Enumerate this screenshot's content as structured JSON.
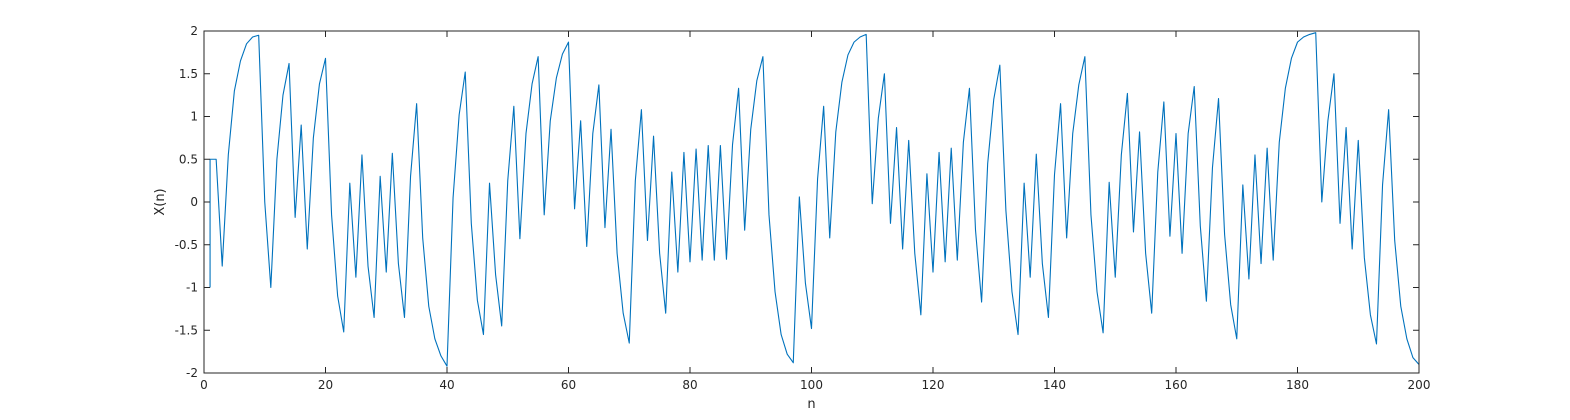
{
  "chart_data": {
    "type": "line",
    "title": "",
    "xlabel": "n",
    "ylabel": "X(n)",
    "xlim": [
      0,
      200
    ],
    "ylim": [
      -2,
      2
    ],
    "xticks": [
      0,
      20,
      40,
      60,
      80,
      100,
      120,
      140,
      160,
      180,
      200
    ],
    "yticks": [
      -2,
      -1.5,
      -1,
      -0.5,
      0,
      0.5,
      1,
      1.5,
      2
    ],
    "grid": false,
    "box": true,
    "series_color": "#0072BD",
    "axis_color": "#262626",
    "series": [
      {
        "x": [
          1,
          1,
          2,
          3,
          4,
          5,
          6,
          7,
          8,
          9,
          10,
          11,
          12,
          13,
          14,
          15,
          16,
          17,
          18,
          19,
          20,
          21,
          22,
          23,
          24,
          25,
          26,
          27,
          28,
          29,
          30,
          31,
          32,
          33,
          34,
          35,
          36,
          37,
          38,
          39,
          40,
          41,
          42,
          43,
          44,
          45,
          46,
          47,
          48,
          49,
          50,
          51,
          52,
          53,
          54,
          55,
          56,
          57,
          58,
          59,
          60,
          61,
          62,
          63,
          64,
          65,
          66,
          67,
          68,
          69,
          70,
          71,
          72,
          73,
          74,
          75,
          76,
          77,
          78,
          79,
          80,
          81,
          82,
          83,
          84,
          85,
          86,
          87,
          88,
          89,
          90,
          91,
          92,
          93,
          94,
          95,
          96,
          97,
          98,
          99,
          100,
          101,
          102,
          103,
          104,
          105,
          106,
          107,
          108,
          109,
          110,
          111,
          112,
          113,
          114,
          115,
          116,
          117,
          118,
          119,
          120,
          121,
          122,
          123,
          124,
          125,
          126,
          127,
          128,
          129,
          130,
          131,
          132,
          133,
          134,
          135,
          136,
          137,
          138,
          139,
          140,
          141,
          142,
          143,
          144,
          145,
          146,
          147,
          148,
          149,
          150,
          151,
          152,
          153,
          154,
          155,
          156,
          157,
          158,
          159,
          160,
          161,
          162,
          163,
          164,
          165,
          166,
          167,
          168,
          169,
          170,
          171,
          172,
          173,
          174,
          175,
          176,
          177,
          178,
          179,
          180,
          181,
          182,
          183,
          184,
          185,
          186,
          187,
          188,
          189,
          190,
          191,
          192,
          193,
          194,
          195,
          196,
          197,
          198,
          199,
          200
        ],
        "y": [
          -1,
          0.5,
          0.5,
          -0.75,
          0.55,
          1.3,
          1.65,
          1.85,
          1.93,
          1.95,
          0,
          -1,
          0.5,
          1.25,
          1.62,
          -0.18,
          0.9,
          -0.55,
          0.75,
          1.38,
          1.68,
          -0.15,
          -1.1,
          -1.52,
          0.22,
          -0.88,
          0.55,
          -0.75,
          -1.35,
          0.3,
          -0.82,
          0.57,
          -0.72,
          -1.35,
          0.3,
          1.15,
          -0.42,
          -1.22,
          -1.6,
          -1.8,
          -1.92,
          0.05,
          1.02,
          1.52,
          -0.25,
          -1.15,
          -1.55,
          0.22,
          -0.85,
          -1.45,
          0.25,
          1.12,
          -0.43,
          0.8,
          1.38,
          1.7,
          -0.15,
          0.95,
          1.45,
          1.73,
          1.87,
          -0.08,
          0.95,
          -0.52,
          0.8,
          1.37,
          -0.3,
          0.85,
          -0.6,
          -1.3,
          -1.65,
          0.25,
          1.08,
          -0.45,
          0.77,
          -0.6,
          -1.3,
          0.35,
          -0.82,
          0.58,
          -0.7,
          0.62,
          -0.68,
          0.66,
          -0.68,
          0.66,
          -0.67,
          0.67,
          1.33,
          -0.33,
          0.85,
          1.42,
          1.7,
          -0.15,
          -1.05,
          -1.55,
          -1.78,
          -1.88,
          0.06,
          -0.95,
          -1.48,
          0.27,
          1.12,
          -0.42,
          0.82,
          1.4,
          1.72,
          1.87,
          1.93,
          1.96,
          -0.02,
          0.98,
          1.5,
          -0.25,
          0.87,
          -0.55,
          0.72,
          -0.6,
          -1.32,
          0.33,
          -0.82,
          0.58,
          -0.7,
          0.63,
          -0.68,
          0.7,
          1.33,
          -0.33,
          -1.17,
          0.45,
          1.2,
          1.6,
          -0.1,
          -1.05,
          -1.55,
          0.22,
          -0.88,
          0.56,
          -0.72,
          -1.35,
          0.32,
          1.15,
          -0.42,
          0.8,
          1.37,
          1.7,
          -0.15,
          -1.05,
          -1.53,
          0.23,
          -0.88,
          0.55,
          1.27,
          -0.35,
          0.82,
          -0.6,
          -1.3,
          0.35,
          1.17,
          -0.4,
          0.8,
          -0.6,
          0.8,
          1.35,
          -0.28,
          -1.16,
          0.4,
          1.21,
          -0.38,
          -1.2,
          -1.6,
          0.2,
          -0.9,
          0.55,
          -0.72,
          0.63,
          -0.68,
          0.7,
          1.33,
          1.68,
          1.87,
          1.93,
          1.96,
          1.98,
          0,
          0.95,
          1.5,
          -0.25,
          0.87,
          -0.55,
          0.72,
          -0.65,
          -1.32,
          -1.66,
          0.2,
          1.08,
          -0.45,
          -1.22,
          -1.6,
          -1.82,
          -1.9
        ]
      }
    ]
  }
}
